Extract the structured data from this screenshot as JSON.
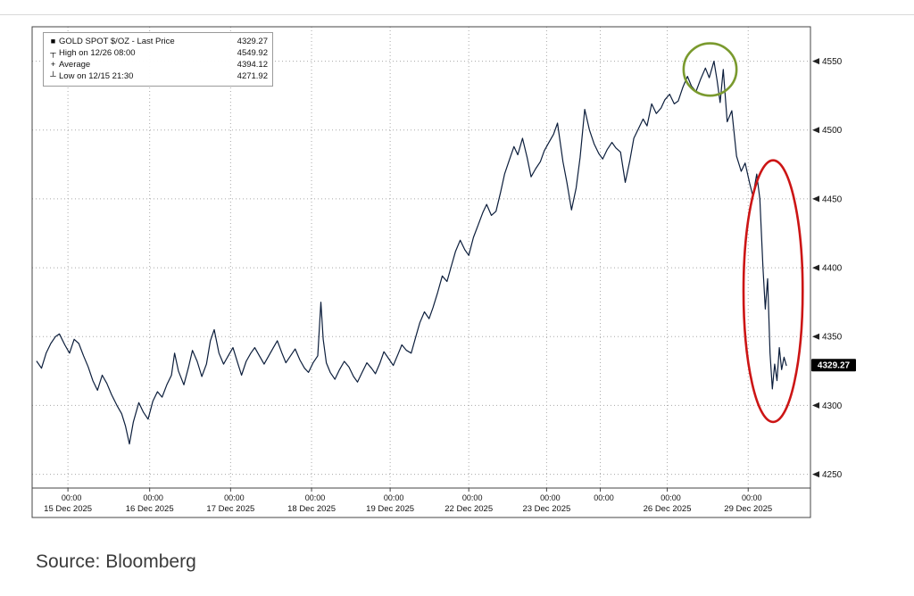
{
  "page": {
    "background": "#ffffff"
  },
  "source_label": "Source: Bloomberg",
  "legend": {
    "items": [
      {
        "marker": "■",
        "label": "GOLD SPOT $/OZ - Last Price",
        "value": "4329.27"
      },
      {
        "marker": "┬",
        "label": "High on 12/26 08:00",
        "value": "4549.92"
      },
      {
        "marker": "+",
        "label": "Average",
        "value": "4394.12"
      },
      {
        "marker": "┴",
        "label": "Low on 12/15 21:30",
        "value": "4271.92"
      }
    ]
  },
  "chart_data": {
    "type": "line",
    "title": "GOLD SPOT $/OZ - Last Price",
    "xlabel": "",
    "ylabel": "",
    "legend_position": "top-left",
    "grid": "dotted",
    "line_color": "#0c1e3c",
    "frame_color": "#444444",
    "grid_color": "#a8a8a8",
    "y_range": [
      4240,
      4575
    ],
    "y_ticks": [
      4250,
      4300,
      4350,
      4400,
      4450,
      4500,
      4550
    ],
    "last_price": 4329.27,
    "last_price_label": "4329.27",
    "high": {
      "value": 4549.92,
      "time": "12/26 08:00"
    },
    "average": 4394.12,
    "low": {
      "value": 4271.92,
      "time": "12/15 21:30"
    },
    "x_ticks": [
      {
        "x_pct": 4.6,
        "time": "00:00",
        "date": "15 Dec 2025"
      },
      {
        "x_pct": 15.1,
        "time": "00:00",
        "date": "16 Dec 2025"
      },
      {
        "x_pct": 25.5,
        "time": "00:00",
        "date": "17 Dec 2025"
      },
      {
        "x_pct": 35.9,
        "time": "00:00",
        "date": "18 Dec 2025"
      },
      {
        "x_pct": 46.0,
        "time": "00:00",
        "date": "19 Dec 2025"
      },
      {
        "x_pct": 56.1,
        "time": "00:00",
        "date": "22 Dec 2025"
      },
      {
        "x_pct": 66.1,
        "time": "00:00",
        "date": "23 Dec 2025"
      },
      {
        "x_pct": 73.0,
        "time": "00:00",
        "date": ""
      },
      {
        "x_pct": 81.6,
        "time": "00:00",
        "date": "26 Dec 2025"
      },
      {
        "x_pct": 92.0,
        "time": "00:00",
        "date": "29 Dec 2025"
      }
    ],
    "annotations": [
      {
        "name": "high-circle",
        "type": "ellipse",
        "color": "#7a9a2e",
        "cx_pct": 87.1,
        "cy_value": 4544,
        "rx_pct": 3.4,
        "ry_value": 19
      },
      {
        "name": "crash-circle",
        "type": "ellipse",
        "color": "#cc1515",
        "cx_pct": 95.2,
        "cy_value": 4383,
        "rx_pct": 3.8,
        "ry_value": 95
      }
    ],
    "points": [
      [
        0.6,
        4332
      ],
      [
        1.2,
        4327
      ],
      [
        1.8,
        4338
      ],
      [
        2.4,
        4345
      ],
      [
        3.0,
        4350
      ],
      [
        3.5,
        4352
      ],
      [
        4.2,
        4344
      ],
      [
        4.8,
        4338
      ],
      [
        5.4,
        4348
      ],
      [
        6.0,
        4345
      ],
      [
        6.6,
        4336
      ],
      [
        7.2,
        4328
      ],
      [
        7.8,
        4318
      ],
      [
        8.4,
        4311
      ],
      [
        9.0,
        4322
      ],
      [
        9.6,
        4316
      ],
      [
        10.2,
        4308
      ],
      [
        10.9,
        4300
      ],
      [
        11.5,
        4294
      ],
      [
        12.0,
        4285
      ],
      [
        12.5,
        4272
      ],
      [
        13.0,
        4288
      ],
      [
        13.7,
        4302
      ],
      [
        14.3,
        4295
      ],
      [
        14.9,
        4290
      ],
      [
        15.5,
        4303
      ],
      [
        16.1,
        4310
      ],
      [
        16.7,
        4306
      ],
      [
        17.3,
        4315
      ],
      [
        17.9,
        4322
      ],
      [
        18.3,
        4338
      ],
      [
        18.8,
        4325
      ],
      [
        19.5,
        4315
      ],
      [
        20.1,
        4328
      ],
      [
        20.6,
        4340
      ],
      [
        21.2,
        4332
      ],
      [
        21.8,
        4321
      ],
      [
        22.4,
        4330
      ],
      [
        22.9,
        4347
      ],
      [
        23.4,
        4355
      ],
      [
        24.0,
        4338
      ],
      [
        24.6,
        4330
      ],
      [
        25.2,
        4336
      ],
      [
        25.8,
        4342
      ],
      [
        26.4,
        4331
      ],
      [
        26.9,
        4322
      ],
      [
        27.5,
        4332
      ],
      [
        28.1,
        4338
      ],
      [
        28.6,
        4342
      ],
      [
        29.2,
        4336
      ],
      [
        29.8,
        4330
      ],
      [
        30.4,
        4336
      ],
      [
        31.0,
        4342
      ],
      [
        31.5,
        4347
      ],
      [
        32.1,
        4338
      ],
      [
        32.6,
        4331
      ],
      [
        33.2,
        4336
      ],
      [
        33.8,
        4341
      ],
      [
        34.4,
        4333
      ],
      [
        35.0,
        4327
      ],
      [
        35.5,
        4324
      ],
      [
        36.1,
        4331
      ],
      [
        36.7,
        4336
      ],
      [
        37.1,
        4375
      ],
      [
        37.4,
        4348
      ],
      [
        37.8,
        4331
      ],
      [
        38.3,
        4324
      ],
      [
        38.9,
        4319
      ],
      [
        39.5,
        4326
      ],
      [
        40.1,
        4332
      ],
      [
        40.7,
        4328
      ],
      [
        41.3,
        4321
      ],
      [
        41.8,
        4317
      ],
      [
        42.4,
        4324
      ],
      [
        43.0,
        4331
      ],
      [
        43.6,
        4327
      ],
      [
        44.1,
        4323
      ],
      [
        44.7,
        4331
      ],
      [
        45.2,
        4339
      ],
      [
        45.8,
        4334
      ],
      [
        46.4,
        4329
      ],
      [
        47.0,
        4337
      ],
      [
        47.5,
        4344
      ],
      [
        48.1,
        4340
      ],
      [
        48.7,
        4338
      ],
      [
        49.3,
        4350
      ],
      [
        49.8,
        4360
      ],
      [
        50.4,
        4368
      ],
      [
        51.0,
        4363
      ],
      [
        51.5,
        4371
      ],
      [
        52.1,
        4382
      ],
      [
        52.7,
        4394
      ],
      [
        53.3,
        4390
      ],
      [
        53.8,
        4400
      ],
      [
        54.4,
        4412
      ],
      [
        55.0,
        4420
      ],
      [
        55.6,
        4413
      ],
      [
        56.1,
        4409
      ],
      [
        56.7,
        4422
      ],
      [
        57.3,
        4431
      ],
      [
        57.9,
        4440
      ],
      [
        58.4,
        4446
      ],
      [
        59.0,
        4438
      ],
      [
        59.6,
        4441
      ],
      [
        60.2,
        4455
      ],
      [
        60.7,
        4468
      ],
      [
        61.3,
        4478
      ],
      [
        61.9,
        4488
      ],
      [
        62.4,
        4482
      ],
      [
        63.0,
        4494
      ],
      [
        63.6,
        4480
      ],
      [
        64.1,
        4466
      ],
      [
        64.7,
        4472
      ],
      [
        65.3,
        4477
      ],
      [
        65.8,
        4485
      ],
      [
        66.4,
        4491
      ],
      [
        67.0,
        4497
      ],
      [
        67.5,
        4505
      ],
      [
        68.2,
        4477
      ],
      [
        68.7,
        4462
      ],
      [
        69.3,
        4442
      ],
      [
        69.9,
        4458
      ],
      [
        70.4,
        4480
      ],
      [
        71.0,
        4515
      ],
      [
        71.6,
        4500
      ],
      [
        72.2,
        4490
      ],
      [
        72.8,
        4483
      ],
      [
        73.3,
        4479
      ],
      [
        73.9,
        4486
      ],
      [
        74.5,
        4491
      ],
      [
        75.0,
        4487
      ],
      [
        75.6,
        4484
      ],
      [
        76.2,
        4462
      ],
      [
        76.8,
        4478
      ],
      [
        77.3,
        4494
      ],
      [
        77.9,
        4501
      ],
      [
        78.5,
        4508
      ],
      [
        79.0,
        4503
      ],
      [
        79.6,
        4519
      ],
      [
        80.2,
        4512
      ],
      [
        80.8,
        4516
      ],
      [
        81.3,
        4522
      ],
      [
        81.9,
        4526
      ],
      [
        82.5,
        4519
      ],
      [
        83.0,
        4521
      ],
      [
        83.6,
        4531
      ],
      [
        84.2,
        4539
      ],
      [
        84.7,
        4532
      ],
      [
        85.3,
        4528
      ],
      [
        85.9,
        4537
      ],
      [
        86.5,
        4545
      ],
      [
        87.0,
        4538
      ],
      [
        87.6,
        4550
      ],
      [
        88.0,
        4536
      ],
      [
        88.4,
        4520
      ],
      [
        88.8,
        4544
      ],
      [
        89.3,
        4506
      ],
      [
        89.9,
        4514
      ],
      [
        90.5,
        4481
      ],
      [
        91.1,
        4470
      ],
      [
        91.6,
        4476
      ],
      [
        92.2,
        4461
      ],
      [
        92.6,
        4452
      ],
      [
        93.1,
        4468
      ],
      [
        93.5,
        4450
      ],
      [
        93.9,
        4400
      ],
      [
        94.2,
        4370
      ],
      [
        94.5,
        4392
      ],
      [
        94.8,
        4338
      ],
      [
        95.1,
        4312
      ],
      [
        95.4,
        4330
      ],
      [
        95.7,
        4318
      ],
      [
        96.0,
        4342
      ],
      [
        96.3,
        4326
      ],
      [
        96.6,
        4335
      ],
      [
        96.9,
        4329
      ]
    ]
  }
}
